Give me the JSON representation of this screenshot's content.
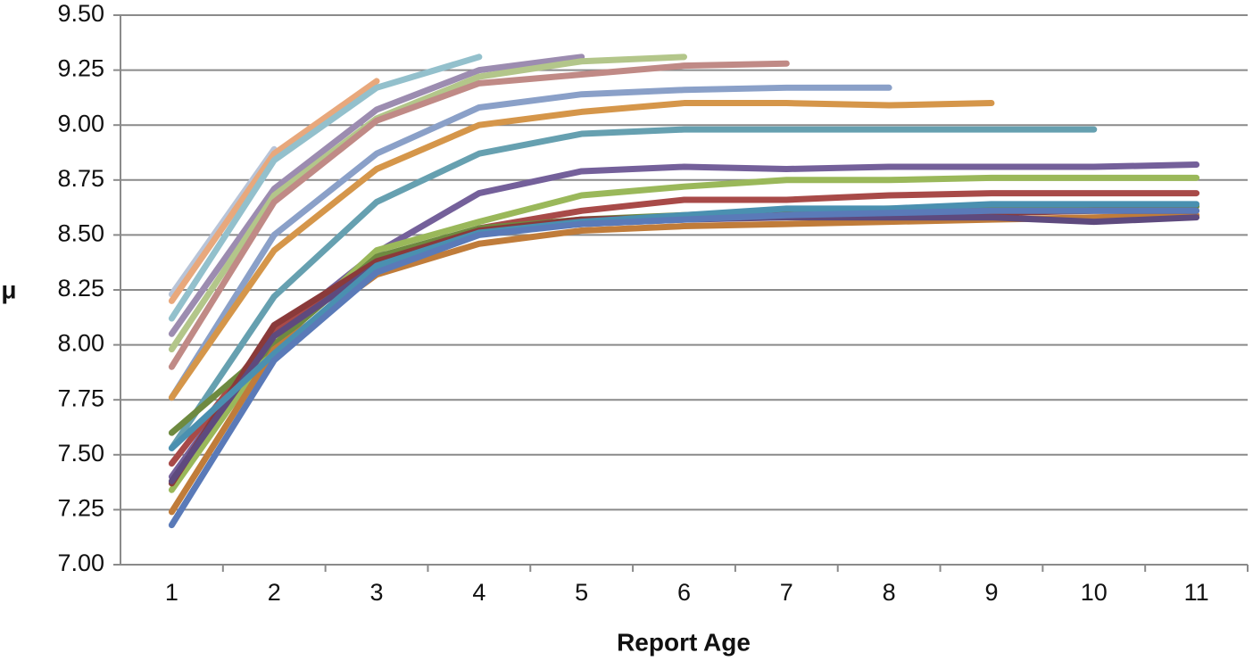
{
  "chart_data": {
    "type": "line",
    "x_label": "Report Age",
    "y_label": "μ",
    "categories": [
      "1",
      "2",
      "3",
      "4",
      "5",
      "6",
      "7",
      "8",
      "9",
      "10",
      "11"
    ],
    "ylim": [
      7,
      9.5
    ],
    "yticks": [
      {
        "value": 7,
        "label": "7.00"
      },
      {
        "value": 7.25,
        "label": "7.25"
      },
      {
        "value": 7.5,
        "label": "7.50"
      },
      {
        "value": 7.75,
        "label": "7.75"
      },
      {
        "value": 8,
        "label": "8.00"
      },
      {
        "value": 8.25,
        "label": "8.25"
      },
      {
        "value": 8.5,
        "label": "8.50"
      },
      {
        "value": 8.75,
        "label": "8.75"
      },
      {
        "value": 9,
        "label": "9.00"
      },
      {
        "value": 9.25,
        "label": "9.25"
      },
      {
        "value": 9.5,
        "label": "9.50"
      }
    ],
    "grid": true,
    "series": [
      {
        "color": "#b8c4d8",
        "values": [
          8.23,
          8.89,
          null,
          null,
          null,
          null,
          null,
          null,
          null,
          null,
          null
        ]
      },
      {
        "color": "#e8a87c",
        "values": [
          8.2,
          8.87,
          9.2,
          null,
          null,
          null,
          null,
          null,
          null,
          null,
          null
        ]
      },
      {
        "color": "#93c0cc",
        "values": [
          8.12,
          8.84,
          9.17,
          9.31,
          null,
          null,
          null,
          null,
          null,
          null,
          null
        ]
      },
      {
        "color": "#9c8cb0",
        "values": [
          8.05,
          8.71,
          9.07,
          9.25,
          9.31,
          null,
          null,
          null,
          null,
          null,
          null
        ]
      },
      {
        "color": "#b3c68a",
        "values": [
          7.98,
          8.68,
          9.03,
          9.22,
          9.29,
          9.31,
          null,
          null,
          null,
          null,
          null
        ]
      },
      {
        "color": "#c08a86",
        "values": [
          7.9,
          8.65,
          9.02,
          9.19,
          9.23,
          9.27,
          9.28,
          null,
          null,
          null,
          null
        ]
      },
      {
        "color": "#8aa0c8",
        "values": [
          7.76,
          8.5,
          8.87,
          9.08,
          9.14,
          9.16,
          9.17,
          9.17,
          null,
          null,
          null
        ]
      },
      {
        "color": "#d5964a",
        "values": [
          7.76,
          8.43,
          8.8,
          9.0,
          9.06,
          9.1,
          9.1,
          9.09,
          9.1,
          null,
          null
        ]
      },
      {
        "color": "#66a0b0",
        "values": [
          7.53,
          8.22,
          8.65,
          8.87,
          8.96,
          8.98,
          8.98,
          8.98,
          8.98,
          8.98,
          null
        ]
      },
      {
        "color": "#74609a",
        "values": [
          7.4,
          8.05,
          8.42,
          8.69,
          8.79,
          8.81,
          8.8,
          8.81,
          8.81,
          8.81,
          8.82
        ]
      },
      {
        "color": "#9ab85a",
        "values": [
          7.34,
          8.0,
          8.43,
          8.56,
          8.68,
          8.72,
          8.75,
          8.75,
          8.76,
          8.76,
          8.76
        ]
      },
      {
        "color": "#a84a48",
        "values": [
          7.46,
          8.06,
          8.37,
          8.53,
          8.61,
          8.66,
          8.66,
          8.68,
          8.69,
          8.69,
          8.69
        ]
      },
      {
        "color": "#6e8a40",
        "values": [
          7.6,
          8.0,
          8.4,
          8.53,
          8.57,
          8.59,
          8.61,
          8.62,
          8.62,
          8.63,
          8.63
        ]
      },
      {
        "color": "#c07c3a",
        "values": [
          7.24,
          7.98,
          8.32,
          8.46,
          8.52,
          8.54,
          8.55,
          8.56,
          8.57,
          8.58,
          8.59
        ]
      },
      {
        "color": "#8a3a3a",
        "values": [
          7.37,
          8.09,
          8.38,
          8.52,
          8.57,
          8.58,
          8.59,
          8.6,
          8.6,
          8.61,
          8.61
        ]
      },
      {
        "color": "#5e4a7e",
        "values": [
          7.38,
          8.04,
          8.36,
          8.51,
          8.55,
          8.57,
          8.58,
          8.58,
          8.58,
          8.56,
          8.58
        ]
      },
      {
        "color": "#4a90b0",
        "values": [
          7.53,
          7.96,
          8.36,
          8.51,
          8.56,
          8.59,
          8.62,
          8.62,
          8.64,
          8.64,
          8.64
        ]
      },
      {
        "color": "#5a7ab8",
        "values": [
          7.18,
          7.93,
          8.33,
          8.5,
          8.55,
          8.57,
          8.59,
          8.6,
          8.61,
          8.61,
          8.61
        ]
      }
    ]
  }
}
